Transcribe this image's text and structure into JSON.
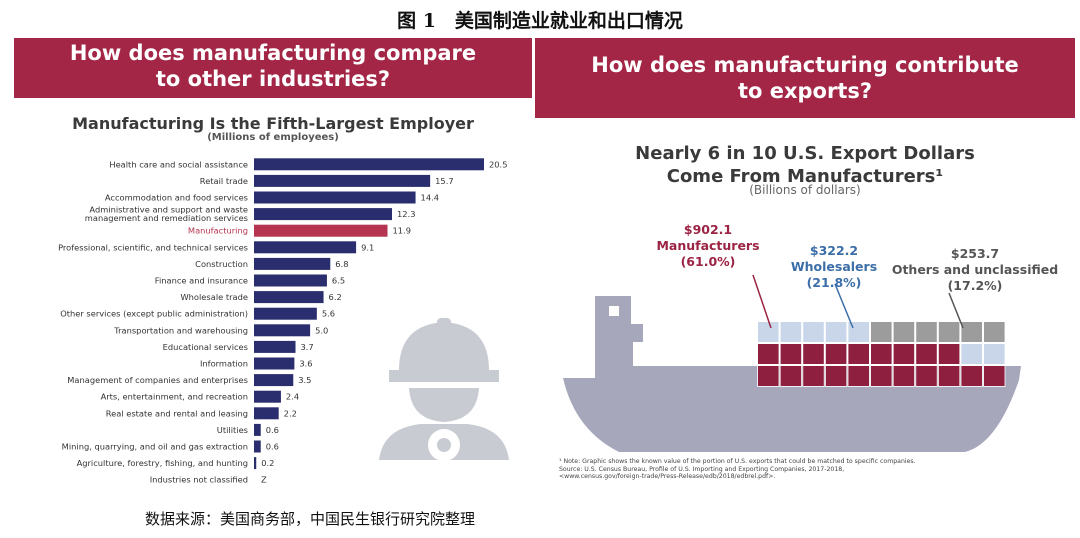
{
  "figure_title": "图 1　美国制造业就业和出口情况",
  "source_note": "数据来源：美国商务部，中国民生银行研究院整理",
  "colors": {
    "band": "#a32646",
    "bar": "#2b2e6e",
    "bar_highlight": "#b5344f",
    "manufacturing_label": "#b5344f",
    "ship_hull": "#a7a7bc",
    "container_manufacturers": "#8e1f3e",
    "container_wholesalers": "#c9d6ea",
    "container_others": "#9c9c9c",
    "watermark": "#c9cbd3"
  },
  "left_panel": {
    "banner_line1": "How does manufacturing compare",
    "banner_line2": "to other industries?",
    "watermark_icon": "worker-gear-icon"
  },
  "right_panel": {
    "banner_line1": "How does manufacturing contribute",
    "banner_line2": "to exports?",
    "callouts": {
      "manufacturers": {
        "value": "$902.1",
        "name": "Manufacturers",
        "share": "(61.0%)"
      },
      "wholesalers": {
        "value": "$322.2",
        "name": "Wholesalers",
        "share": "(21.8%)"
      },
      "others": {
        "value": "$253.7",
        "name": "Others and unclassified",
        "share": "(17.2%)"
      }
    },
    "footnote_line1": "¹ Note: Graphic shows the known value of the portion of U.S. exports that could be matched to specific companies.",
    "footnote_line2": "Source: U.S. Census Bureau, Profile of U.S. Importing and Exporting Companies, 2017-2018,",
    "footnote_line3": "<www.census.gov/foreign-trade/Press-Release/edb/2018/edbrel.pdf>."
  },
  "chart_data": [
    {
      "type": "bar",
      "orientation": "horizontal",
      "title": "Manufacturing Is the Fifth-Largest Employer",
      "subtitle": "(Millions of employees)",
      "unit": "Millions of employees",
      "highlight": "Manufacturing",
      "xlim": [
        0,
        20.5
      ],
      "grid": false,
      "categories": [
        "Health care and social assistance",
        "Retail trade",
        "Accommodation and food services",
        "Administrative and support and waste|management and remediation services",
        "Manufacturing",
        "Professional, scientific, and technical services",
        "Construction",
        "Finance and insurance",
        "Wholesale trade",
        "Other services (except public administration)",
        "Transportation and warehousing",
        "Educational services",
        "Information",
        "Management of companies and enterprises",
        "Arts, entertainment, and recreation",
        "Real estate and rental and leasing",
        "Utilities",
        "Mining, quarrying, and oil and gas extraction",
        "Agriculture, forestry, fishing, and hunting",
        "Industries not classified"
      ],
      "values": [
        20.5,
        15.7,
        14.4,
        12.3,
        11.9,
        9.1,
        6.8,
        6.5,
        6.2,
        5.6,
        5.0,
        3.7,
        3.6,
        3.5,
        2.4,
        2.2,
        0.6,
        0.6,
        0.2,
        0
      ],
      "value_labels": [
        "20.5",
        "15.7",
        "14.4",
        "12.3",
        "11.9",
        "9.1",
        "6.8",
        "6.5",
        "6.2",
        "5.6",
        "5.0",
        "3.7",
        "3.6",
        "3.5",
        "2.4",
        "2.2",
        "0.6",
        "0.6",
        "0.2",
        "Z"
      ]
    },
    {
      "type": "bar",
      "orientation": "stacked-containers",
      "title": "Nearly 6 in 10 U.S. Export Dollars|Come From Manufacturers¹",
      "subtitle": "(Billions of dollars)",
      "unit": "Billions of dollars",
      "categories": [
        "Manufacturers",
        "Wholesalers",
        "Others and unclassified"
      ],
      "values": [
        902.1,
        322.2,
        253.7
      ],
      "shares_percent": [
        61.0,
        21.8,
        17.2
      ]
    }
  ]
}
